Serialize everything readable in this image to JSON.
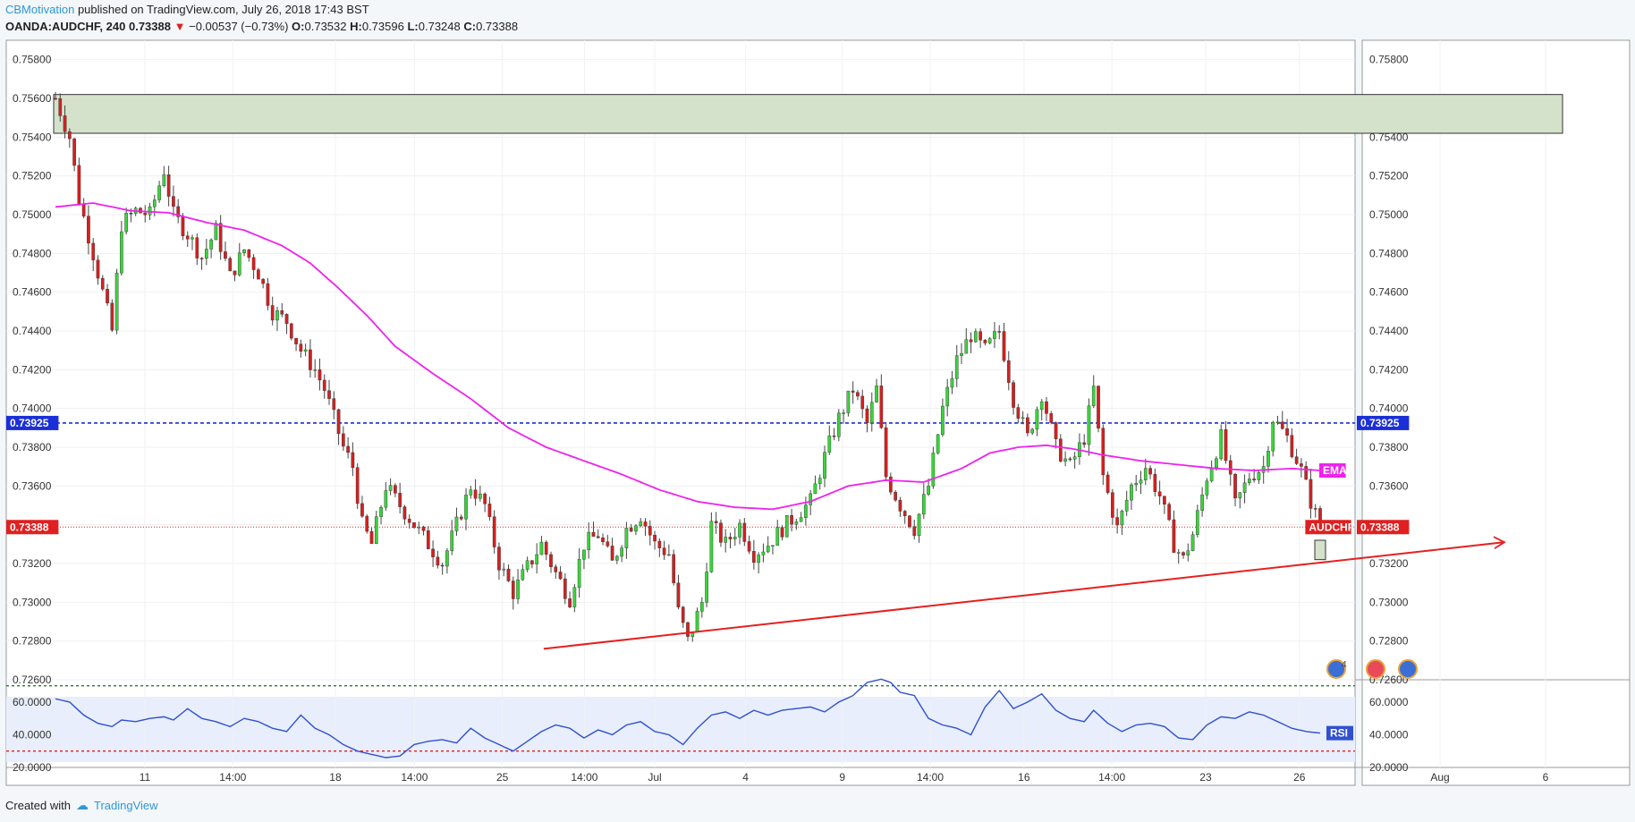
{
  "header": {
    "publisher": "CBMotivation",
    "published_text": "published on TradingView.com, July 26, 2018 17:43 BST",
    "symbol": "OANDA:AUDCHF, 240",
    "last": "0.73388",
    "change": "−0.00537 (−0.73%)",
    "o_label": "O:",
    "o": "0.73532",
    "h_label": "H:",
    "h": "0.73596",
    "l_label": "L:",
    "l": "0.73248",
    "c_label": "C:",
    "c": "0.73388"
  },
  "footer": {
    "created_with": "Created with",
    "brand": "TradingView"
  },
  "colors": {
    "up": "#3ad43a",
    "down": "#d42020",
    "ema": "#ee22ee",
    "rsi": "#3050d0",
    "zone": "#d5e2cb",
    "blue_level": "#1a2fd8",
    "red_level": "#e02020",
    "trend": "#e52020"
  },
  "chart_data": [
    {
      "type": "candlestick",
      "symbol": "AUDCHF",
      "timeframe": "240",
      "ylim": [
        0.726,
        0.759
      ],
      "y_ticks": [
        "0.75800",
        "0.75600",
        "0.75400",
        "0.75200",
        "0.75000",
        "0.74800",
        "0.74600",
        "0.74400",
        "0.74200",
        "0.74000",
        "0.73800",
        "0.73600",
        "0.73400",
        "0.73200",
        "0.73000",
        "0.72800",
        "0.72600"
      ],
      "x_ticks": [
        "11",
        "14:00",
        "18",
        "14:00",
        "25",
        "14:00",
        "Jul",
        "4",
        "9",
        "14:00",
        "16",
        "14:00",
        "23",
        "26",
        "Aug",
        "6"
      ],
      "last_price_label": "0.73388",
      "level_label": "0.73925",
      "level_value": 0.73925,
      "series_label": "AUDCHF",
      "ema_label": "EMA",
      "resistance_zone": [
        0.7542,
        0.7562
      ],
      "trendline": {
        "start": {
          "x": 0.2,
          "y": 0.7276
        },
        "end": {
          "x": 236.4,
          "y": 0.7331
        }
      },
      "events": [
        "4"
      ],
      "close_path": [
        [
          0,
          0.756
        ],
        [
          3,
          0.754
        ],
        [
          5,
          0.7508
        ],
        [
          8,
          0.748
        ],
        [
          12,
          0.744
        ],
        [
          14,
          0.7495
        ],
        [
          17,
          0.7502
        ],
        [
          20,
          0.75
        ],
        [
          23,
          0.7523
        ],
        [
          25,
          0.75
        ],
        [
          28,
          0.749
        ],
        [
          31,
          0.7478
        ],
        [
          34,
          0.7492
        ],
        [
          37,
          0.7468
        ],
        [
          40,
          0.7482
        ],
        [
          43,
          0.747
        ],
        [
          46,
          0.745
        ],
        [
          49,
          0.7445
        ],
        [
          52,
          0.743
        ],
        [
          55,
          0.742
        ],
        [
          57,
          0.741
        ],
        [
          59,
          0.7395
        ],
        [
          61,
          0.738
        ],
        [
          63,
          0.737
        ],
        [
          65,
          0.734
        ],
        [
          67,
          0.733
        ],
        [
          70,
          0.736
        ],
        [
          73,
          0.735
        ],
        [
          76,
          0.734
        ],
        [
          79,
          0.733
        ],
        [
          82,
          0.732
        ],
        [
          85,
          0.734
        ],
        [
          88,
          0.736
        ],
        [
          91,
          0.735
        ],
        [
          94,
          0.732
        ],
        [
          97,
          0.7305
        ],
        [
          100,
          0.7318
        ],
        [
          103,
          0.733
        ],
        [
          106,
          0.7315
        ],
        [
          109,
          0.7302
        ],
        [
          112,
          0.733
        ],
        [
          115,
          0.7335
        ],
        [
          118,
          0.732
        ],
        [
          121,
          0.7338
        ],
        [
          124,
          0.7345
        ],
        [
          127,
          0.733
        ],
        [
          130,
          0.7325
        ],
        [
          132,
          0.7295
        ],
        [
          134,
          0.728
        ],
        [
          137,
          0.73
        ],
        [
          139,
          0.734
        ],
        [
          142,
          0.733
        ],
        [
          145,
          0.734
        ],
        [
          148,
          0.7325
        ],
        [
          151,
          0.733
        ],
        [
          154,
          0.7338
        ],
        [
          157,
          0.7345
        ],
        [
          160,
          0.7352
        ],
        [
          163,
          0.7375
        ],
        [
          166,
          0.7395
        ],
        [
          169,
          0.741
        ],
        [
          172,
          0.7392
        ],
        [
          174,
          0.741
        ],
        [
          176,
          0.7365
        ],
        [
          179,
          0.735
        ],
        [
          182,
          0.7338
        ],
        [
          185,
          0.736
        ],
        [
          188,
          0.74
        ],
        [
          191,
          0.7425
        ],
        [
          194,
          0.7438
        ],
        [
          197,
          0.743
        ],
        [
          200,
          0.744
        ],
        [
          203,
          0.7405
        ],
        [
          206,
          0.7385
        ],
        [
          209,
          0.7408
        ],
        [
          212,
          0.738
        ],
        [
          215,
          0.737
        ],
        [
          218,
          0.7385
        ],
        [
          220,
          0.741
        ],
        [
          222,
          0.7365
        ],
        [
          225,
          0.7338
        ],
        [
          228,
          0.736
        ],
        [
          231,
          0.737
        ],
        [
          234,
          0.7355
        ],
        [
          237,
          0.733
        ],
        [
          239,
          0.7322
        ],
        [
          241,
          0.7335
        ],
        [
          244,
          0.7365
        ],
        [
          247,
          0.7385
        ],
        [
          250,
          0.735
        ],
        [
          253,
          0.7365
        ],
        [
          256,
          0.737
        ],
        [
          258,
          0.7395
        ],
        [
          261,
          0.7385
        ],
        [
          264,
          0.7368
        ],
        [
          266,
          0.7352
        ],
        [
          268,
          0.7339
        ]
      ],
      "ema_path": [
        [
          0,
          0.7504
        ],
        [
          8,
          0.7506
        ],
        [
          16,
          0.7502
        ],
        [
          24,
          0.7501
        ],
        [
          32,
          0.7496
        ],
        [
          40,
          0.7492
        ],
        [
          48,
          0.7484
        ],
        [
          54,
          0.7475
        ],
        [
          60,
          0.7462
        ],
        [
          66,
          0.7448
        ],
        [
          72,
          0.7432
        ],
        [
          80,
          0.7418
        ],
        [
          88,
          0.7405
        ],
        [
          96,
          0.739
        ],
        [
          104,
          0.738
        ],
        [
          112,
          0.7373
        ],
        [
          120,
          0.7366
        ],
        [
          128,
          0.7358
        ],
        [
          136,
          0.7352
        ],
        [
          144,
          0.7349
        ],
        [
          152,
          0.7348
        ],
        [
          160,
          0.7352
        ],
        [
          168,
          0.736
        ],
        [
          176,
          0.7363
        ],
        [
          184,
          0.7362
        ],
        [
          192,
          0.7369
        ],
        [
          198,
          0.7377
        ],
        [
          204,
          0.738
        ],
        [
          210,
          0.7381
        ],
        [
          216,
          0.7379
        ],
        [
          222,
          0.7376
        ],
        [
          230,
          0.7373
        ],
        [
          238,
          0.7371
        ],
        [
          246,
          0.7369
        ],
        [
          254,
          0.7368
        ],
        [
          262,
          0.7369
        ],
        [
          268,
          0.7368
        ]
      ],
      "highs_lows_note": ""
    },
    {
      "type": "line",
      "name": "RSI",
      "ylim": [
        20,
        72
      ],
      "y_ticks": [
        "60.0000",
        "40.0000",
        "20.0000"
      ],
      "overbought": 70,
      "oversold": 30,
      "rsi_path": [
        [
          0,
          62
        ],
        [
          3,
          60
        ],
        [
          6,
          52
        ],
        [
          9,
          47
        ],
        [
          12,
          45
        ],
        [
          14,
          49
        ],
        [
          17,
          48
        ],
        [
          20,
          50
        ],
        [
          23,
          51
        ],
        [
          25,
          49
        ],
        [
          28,
          56
        ],
        [
          31,
          50
        ],
        [
          34,
          48
        ],
        [
          37,
          45
        ],
        [
          40,
          50
        ],
        [
          43,
          48
        ],
        [
          46,
          44
        ],
        [
          49,
          42
        ],
        [
          52,
          52
        ],
        [
          55,
          44
        ],
        [
          58,
          40
        ],
        [
          61,
          34
        ],
        [
          64,
          30
        ],
        [
          67,
          28
        ],
        [
          70,
          26
        ],
        [
          73,
          27
        ],
        [
          76,
          34
        ],
        [
          79,
          36
        ],
        [
          82,
          37
        ],
        [
          85,
          35
        ],
        [
          88,
          44
        ],
        [
          91,
          38
        ],
        [
          94,
          34
        ],
        [
          97,
          30
        ],
        [
          100,
          36
        ],
        [
          103,
          42
        ],
        [
          106,
          46
        ],
        [
          109,
          44
        ],
        [
          112,
          38
        ],
        [
          115,
          43
        ],
        [
          118,
          40
        ],
        [
          121,
          46
        ],
        [
          124,
          48
        ],
        [
          127,
          42
        ],
        [
          130,
          40
        ],
        [
          133,
          34
        ],
        [
          136,
          44
        ],
        [
          139,
          52
        ],
        [
          142,
          54
        ],
        [
          145,
          50
        ],
        [
          148,
          55
        ],
        [
          151,
          52
        ],
        [
          154,
          55
        ],
        [
          157,
          56
        ],
        [
          160,
          57
        ],
        [
          163,
          54
        ],
        [
          166,
          60
        ],
        [
          169,
          64
        ],
        [
          172,
          72
        ],
        [
          175,
          74
        ],
        [
          177,
          72
        ],
        [
          179,
          66
        ],
        [
          182,
          64
        ],
        [
          185,
          50
        ],
        [
          188,
          46
        ],
        [
          191,
          44
        ],
        [
          194,
          40
        ],
        [
          197,
          57
        ],
        [
          200,
          67
        ],
        [
          203,
          56
        ],
        [
          206,
          60
        ],
        [
          209,
          65
        ],
        [
          212,
          55
        ],
        [
          215,
          50
        ],
        [
          218,
          48
        ],
        [
          220,
          55
        ],
        [
          223,
          47
        ],
        [
          226,
          42
        ],
        [
          229,
          46
        ],
        [
          232,
          47
        ],
        [
          235,
          45
        ],
        [
          238,
          38
        ],
        [
          241,
          37
        ],
        [
          244,
          46
        ],
        [
          247,
          51
        ],
        [
          250,
          50
        ],
        [
          253,
          54
        ],
        [
          256,
          52
        ],
        [
          259,
          48
        ],
        [
          262,
          44
        ],
        [
          265,
          42
        ],
        [
          268,
          41
        ]
      ],
      "label": "RSI"
    }
  ]
}
